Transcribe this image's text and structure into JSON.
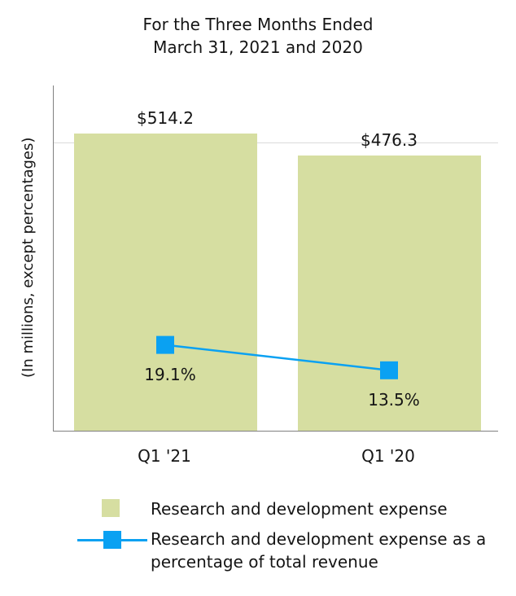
{
  "title": {
    "line1": "For the Three Months Ended",
    "line2": "March 31, 2021 and 2020"
  },
  "ylabel": "(In millions, except percentages)",
  "legend": {
    "items": [
      {
        "label": "Research and development expense"
      },
      {
        "label": "Research and development expense as a percentage of total revenue"
      }
    ]
  },
  "chart_data": {
    "type": "bar",
    "title": "For the Three Months Ended March 31, 2021 and 2020",
    "categories": [
      "Q1 '21",
      "Q1 '20"
    ],
    "series": [
      {
        "name": "Research and development expense",
        "type": "bar",
        "values": [
          514.2,
          476.3
        ],
        "data_labels": [
          "$514.2",
          "$476.3"
        ],
        "color": "#d6dea1"
      },
      {
        "name": "Research and development expense as a percentage of total revenue",
        "type": "line",
        "values": [
          19.1,
          13.5
        ],
        "data_labels": [
          "19.1%",
          "13.5%"
        ],
        "color": "#0aa1f2"
      }
    ],
    "xlabel": "",
    "ylabel": "(In millions, except percentages)",
    "ylim": [
      0,
      600
    ],
    "gridlines": [
      500
    ],
    "grid": "single faint horizontal gridline near 500",
    "legend_position": "bottom"
  }
}
